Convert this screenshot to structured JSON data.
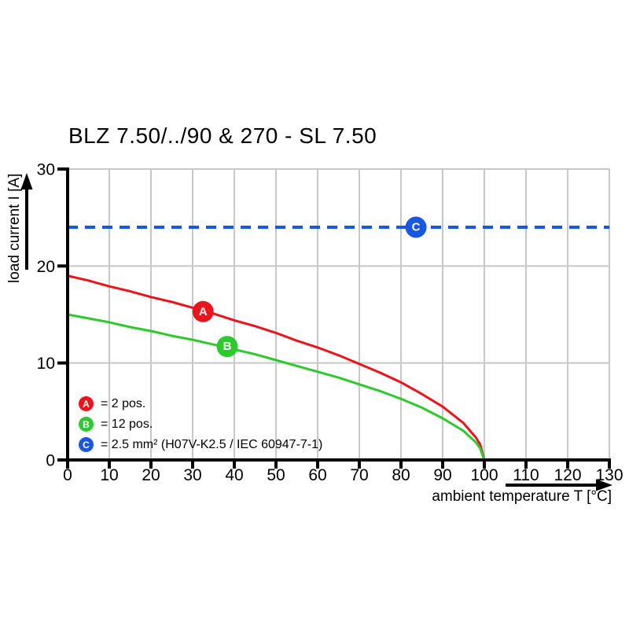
{
  "title": "BLZ 7.50/../90 & 270 - SL 7.50",
  "chart_data": {
    "type": "line",
    "title": "BLZ 7.50/../90 & 270 - SL 7.50",
    "xlabel": "ambient temperature T [°C]",
    "ylabel": "load current I [A]",
    "xlim": [
      0,
      130
    ],
    "ylim": [
      0,
      30
    ],
    "x_ticks": [
      0,
      10,
      20,
      30,
      40,
      50,
      60,
      70,
      80,
      90,
      100,
      110,
      120,
      130
    ],
    "y_ticks": [
      0,
      10,
      20,
      30
    ],
    "grid": true,
    "legend_position": "inside-bottom-left",
    "colors": {
      "axis": "#000000",
      "grid": "#c8c8c8",
      "series_a": "#e8151c",
      "series_b": "#2ec92e",
      "series_c": "#1a57e0"
    },
    "series": [
      {
        "name": "A",
        "label": "= 2 pos.",
        "color": "#e8151c",
        "style": "solid",
        "x": [
          0,
          5,
          10,
          15,
          20,
          25,
          30,
          35,
          40,
          45,
          50,
          55,
          60,
          65,
          70,
          75,
          80,
          85,
          90,
          95,
          98,
          99,
          100
        ],
        "y": [
          19.0,
          18.5,
          17.9,
          17.4,
          16.8,
          16.3,
          15.7,
          15.1,
          14.4,
          13.8,
          13.1,
          12.3,
          11.6,
          10.8,
          9.9,
          9.0,
          8.0,
          6.8,
          5.5,
          3.8,
          2.3,
          1.6,
          0
        ],
        "marker": {
          "letter": "A",
          "t": 32.5,
          "i": 15.3
        }
      },
      {
        "name": "B",
        "label": "= 12 pos.",
        "color": "#2ec92e",
        "style": "solid",
        "x": [
          0,
          5,
          10,
          15,
          20,
          25,
          30,
          35,
          40,
          45,
          50,
          55,
          60,
          65,
          70,
          75,
          80,
          85,
          90,
          95,
          98,
          99,
          100
        ],
        "y": [
          15.0,
          14.6,
          14.2,
          13.7,
          13.3,
          12.8,
          12.4,
          11.9,
          11.4,
          10.9,
          10.3,
          9.7,
          9.1,
          8.5,
          7.8,
          7.1,
          6.3,
          5.4,
          4.3,
          3.0,
          1.8,
          1.2,
          0
        ],
        "marker": {
          "letter": "B",
          "t": 38.3,
          "i": 11.7
        }
      },
      {
        "name": "C",
        "label": "= 2.5 mm² (H07V-K2.5 / IEC 60947-7-1)",
        "color": "#1a57e0",
        "style": "dashed",
        "x": [
          0,
          130
        ],
        "y": [
          24,
          24
        ],
        "marker": {
          "letter": "C",
          "t": 83.6,
          "i": 24
        }
      }
    ]
  }
}
